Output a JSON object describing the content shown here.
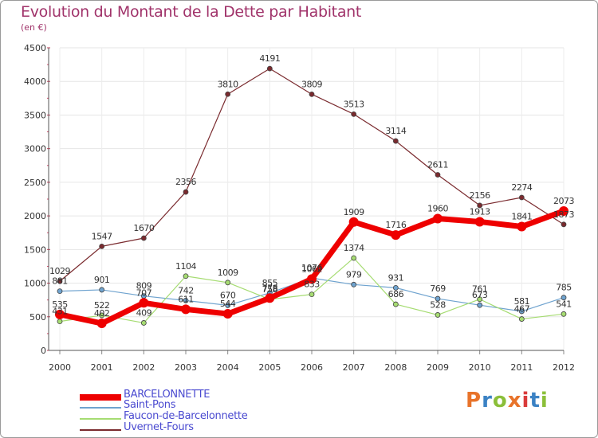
{
  "title": "Evolution du Montant de la Dette par Habitant",
  "subtitle": "(en €)",
  "logo": {
    "text": "Proxiti",
    "letters": [
      {
        "ch": "P",
        "color": "#e8732a"
      },
      {
        "ch": "r",
        "color": "#3b82c4"
      },
      {
        "ch": "o",
        "color": "#8bbf3a"
      },
      {
        "ch": "x",
        "color": "#e8732a"
      },
      {
        "ch": "i",
        "color": "#d93b3b"
      },
      {
        "ch": "t",
        "color": "#3b82c4"
      },
      {
        "ch": "i",
        "color": "#8bbf3a"
      }
    ]
  },
  "chart_data": {
    "type": "line",
    "title": "Evolution du Montant de la Dette par Habitant",
    "subtitle": "(en €)",
    "x": [
      "2000",
      "2001",
      "2002",
      "2003",
      "2004",
      "2005",
      "2006",
      "2007",
      "2008",
      "2009",
      "2010",
      "2011",
      "2012"
    ],
    "ylim": [
      0,
      4500
    ],
    "yticks": [
      0,
      500,
      1000,
      1500,
      2000,
      2500,
      3000,
      3500,
      4000,
      4500
    ],
    "grid": true,
    "legend_position": "bottom-left",
    "series": [
      {
        "name": "BARCELONNETTE",
        "color": "#ee0000",
        "values": [
          535,
          402,
          707,
          611,
          544,
          778,
          1062,
          1909,
          1716,
          1960,
          1913,
          1841,
          2073
        ]
      },
      {
        "name": "Saint-Pons",
        "color": "#6fa3cf",
        "values": [
          881,
          901,
          809,
          742,
          670,
          855,
          1076,
          979,
          931,
          769,
          673,
          581,
          785
        ]
      },
      {
        "name": "Faucon-de-Barcelonnette",
        "color": "#a6dc72",
        "values": [
          431,
          522,
          409,
          1104,
          1009,
          758,
          833,
          1374,
          686,
          528,
          761,
          467,
          541
        ]
      },
      {
        "name": "Uvernet-Fours",
        "color": "#7a2a2e",
        "values": [
          1029,
          1547,
          1670,
          2356,
          3810,
          4191,
          3809,
          3513,
          3114,
          2611,
          2156,
          2274,
          1873
        ]
      }
    ]
  }
}
